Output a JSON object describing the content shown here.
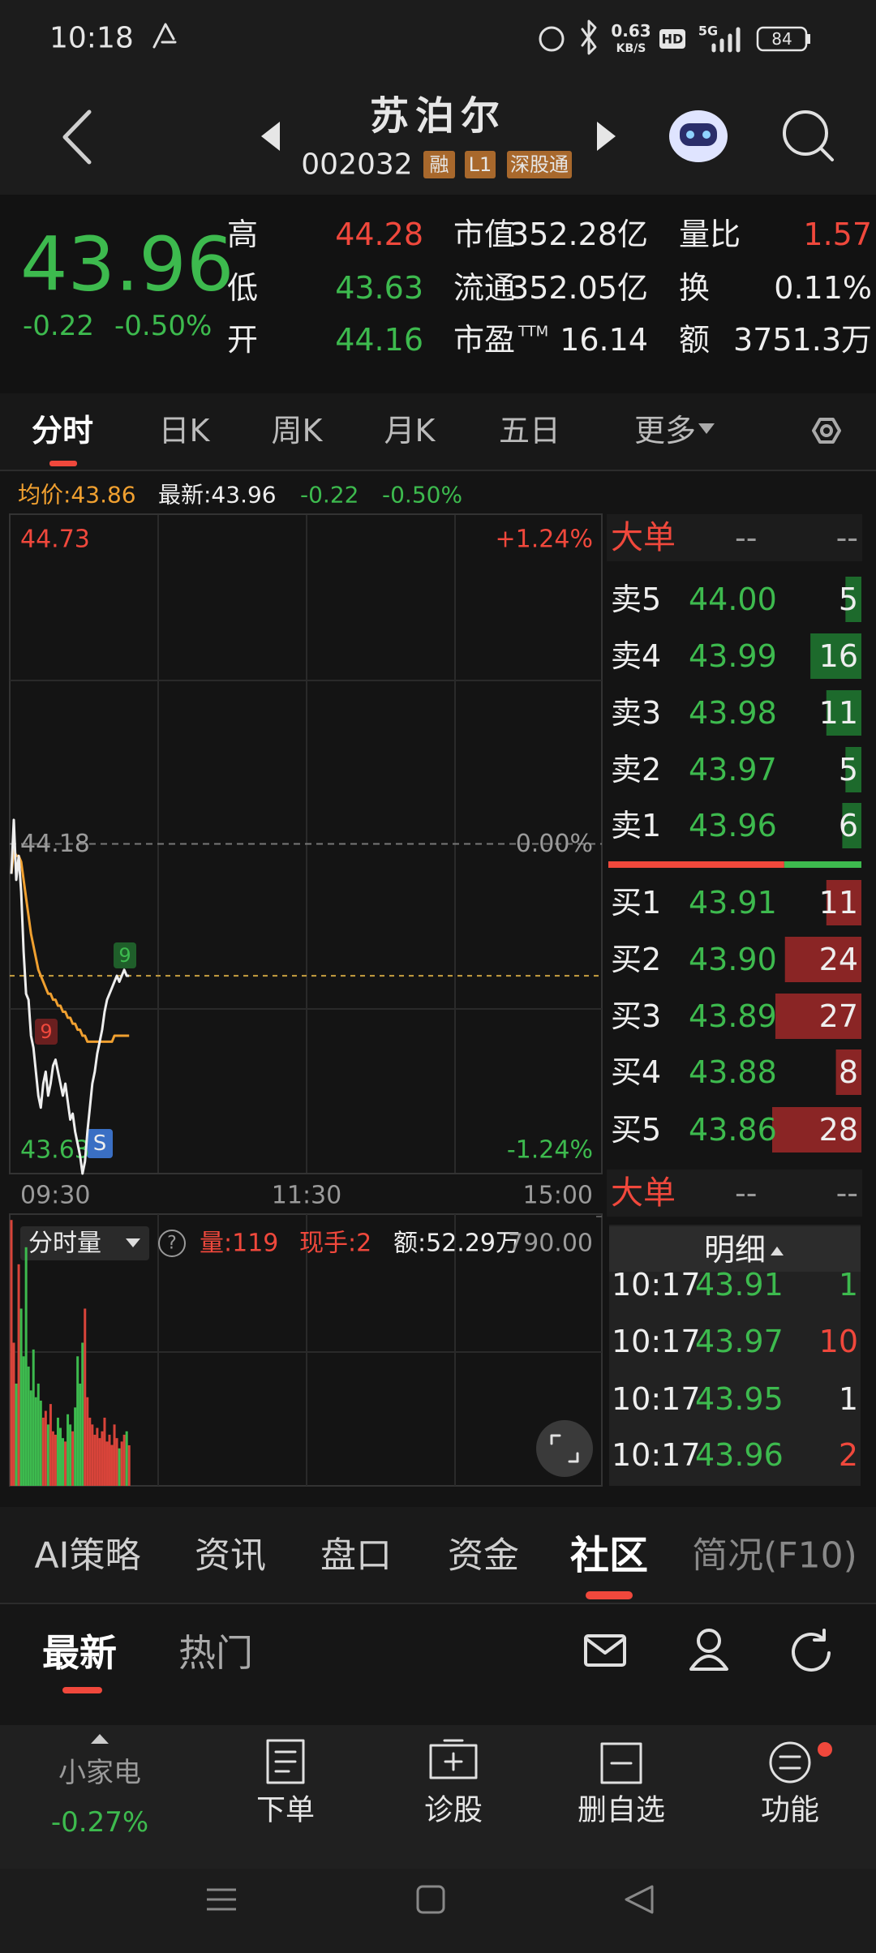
{
  "status_bar": {
    "time": "10:18",
    "speed": "0.63",
    "speed_unit": "KB/S",
    "hd": "HD",
    "network": "5G",
    "battery": "84"
  },
  "header": {
    "title": "苏泊尔",
    "code": "002032",
    "tags": [
      "融",
      "L1",
      "深股通"
    ]
  },
  "quote": {
    "price": "43.96",
    "change": "-0.22",
    "change_pct": "-0.50%",
    "stats": [
      {
        "label": "高",
        "value": "44.28"
      },
      {
        "label": "低",
        "value": "43.63"
      },
      {
        "label": "开",
        "value": "44.16"
      },
      {
        "label": "市值",
        "value": "352.28亿"
      },
      {
        "label": "流通",
        "value": "352.05亿"
      },
      {
        "label": "市盈",
        "label_sup": "TTM",
        "value": "16.14"
      },
      {
        "label": "量比",
        "value": "1.57"
      },
      {
        "label": "换",
        "value": "0.11%"
      },
      {
        "label": "额",
        "value": "3751.3万"
      }
    ]
  },
  "chart_tabs": [
    "分时",
    "日K",
    "周K",
    "月K",
    "五日",
    "更多"
  ],
  "info_line": {
    "avg": "均价:43.86",
    "latest": "最新:43.96",
    "change": "-0.22",
    "change_pct": "-0.50%"
  },
  "intraday": {
    "ylim": [
      43.63,
      44.73
    ],
    "yticks": [
      44.73,
      44.18,
      43.63
    ],
    "pct_labels": [
      "+1.24%",
      "0.00%",
      "-1.24%"
    ],
    "latest": 43.96,
    "x_labels": [
      "09:30",
      "11:30",
      "15:00"
    ],
    "price": [
      44.13,
      44.22,
      44.12,
      44.16,
      44.1,
      44.0,
      43.93,
      43.92,
      43.86,
      43.84,
      43.8,
      43.76,
      43.74,
      43.78,
      43.8,
      43.76,
      43.78,
      43.81,
      43.82,
      43.8,
      43.78,
      43.76,
      43.78,
      43.75,
      43.72,
      43.73,
      43.7,
      43.68,
      43.66,
      43.63,
      43.65,
      43.7,
      43.74,
      43.78,
      43.8,
      43.83,
      43.85,
      43.87,
      43.9,
      43.92,
      43.93,
      43.94,
      43.95,
      43.96,
      43.95,
      43.96,
      43.97,
      43.96,
      43.96
    ],
    "avg": [
      44.13,
      44.17,
      44.16,
      44.16,
      44.15,
      44.12,
      44.09,
      44.06,
      44.03,
      44.01,
      43.99,
      43.97,
      43.96,
      43.95,
      43.94,
      43.93,
      43.93,
      43.92,
      43.92,
      43.91,
      43.91,
      43.9,
      43.9,
      43.89,
      43.89,
      43.88,
      43.88,
      43.87,
      43.87,
      43.86,
      43.86,
      43.85,
      43.85,
      43.85,
      43.85,
      43.85,
      43.85,
      43.85,
      43.85,
      43.85,
      43.85,
      43.85,
      43.86,
      43.86,
      43.86,
      43.86,
      43.86,
      43.86,
      43.86
    ],
    "signals": [
      "9",
      "9",
      "S"
    ]
  },
  "volume": {
    "selector": "分时量",
    "help": "?",
    "vol": "量:119",
    "hand": "现手:2",
    "amount": "额:52.29万",
    "ylim": [
      0,
      790
    ],
    "yticks": [
      {
        "value": 790,
        "label": "790.00"
      }
    ],
    "values": [
      780,
      420,
      300,
      650,
      520,
      380,
      700,
      350,
      280,
      400,
      260,
      300,
      250,
      200,
      220,
      180,
      240,
      160,
      150,
      200,
      170,
      140,
      130,
      210,
      180,
      160,
      230,
      380,
      300,
      420,
      520,
      260,
      200,
      180,
      150,
      170,
      140,
      160,
      200,
      130,
      150,
      120,
      180,
      140,
      110,
      130,
      150,
      160,
      119
    ]
  },
  "order_book": {
    "title": "大单",
    "dashes": [
      "--",
      "--"
    ],
    "asks": [
      {
        "label": "卖5",
        "price": "44.00",
        "volume": 5
      },
      {
        "label": "卖4",
        "price": "43.99",
        "volume": 16
      },
      {
        "label": "卖3",
        "price": "43.98",
        "volume": 11
      },
      {
        "label": "卖2",
        "price": "43.97",
        "volume": 5
      },
      {
        "label": "卖1",
        "price": "43.96",
        "volume": 6
      }
    ],
    "bids": [
      {
        "label": "买1",
        "price": "43.91",
        "volume": 11
      },
      {
        "label": "买2",
        "price": "43.90",
        "volume": 24
      },
      {
        "label": "买3",
        "price": "43.89",
        "volume": 27
      },
      {
        "label": "买4",
        "price": "43.88",
        "volume": 8
      },
      {
        "label": "买5",
        "price": "43.86",
        "volume": 28
      }
    ],
    "title2": "大单",
    "dashes2": [
      "--",
      "--"
    ]
  },
  "trades": {
    "title": "明细",
    "rows": [
      [
        "10:17",
        "43.91",
        "1"
      ],
      [
        "10:17",
        "43.97",
        "10"
      ],
      [
        "10:17",
        "43.95",
        "1"
      ],
      [
        "10:17",
        "43.96",
        "2"
      ]
    ]
  },
  "bottom_tabs": [
    "AI策略",
    "资讯",
    "盘口",
    "资金",
    "社区",
    "简况(F10)"
  ],
  "sub_tabs": [
    "最新",
    "热门"
  ],
  "nav": {
    "sector": "小家电",
    "sector_change": "-0.27%",
    "items": [
      "下单",
      "诊股",
      "删自选",
      "功能"
    ]
  }
}
